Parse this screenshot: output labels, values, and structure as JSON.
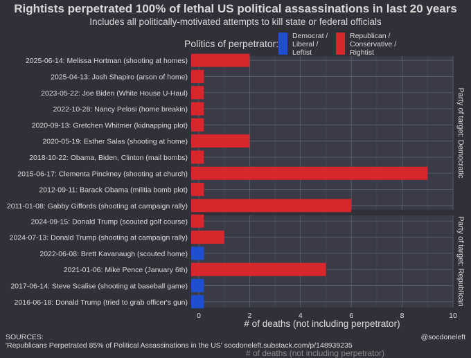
{
  "title": "Rightists perpetrated 100% of lethal US political assassinations in last 20 years",
  "subtitle": "Includes all politically-motivated attempts to kill state or federal officials",
  "legend": {
    "title": "Politics of perpetrator:",
    "items": [
      {
        "label": "Democrat /\nLiberal /\nLeftist",
        "color": "#1f4fd1"
      },
      {
        "label": "Republican /\nConservative /\nRightist",
        "color": "#d7262c"
      }
    ]
  },
  "sources": {
    "heading": "SOURCES:",
    "line": "'Republicans Perpetrated 85% of Political Assassinations in the US' socdoneleft.substack.com/p/148939235"
  },
  "handle": "@socdoneleft",
  "ghost_text": "# of deaths (not including perpetrator)",
  "chart_data": {
    "type": "bar",
    "orientation": "horizontal",
    "xlabel": "# of deaths (not including perpetrator)",
    "xlim": [
      -0.3,
      10
    ],
    "xticks": [
      0,
      2,
      4,
      6,
      8,
      10
    ],
    "grid": true,
    "legend_position": "top",
    "colors": {
      "Democrat": "#1f4fd1",
      "Republican": "#d7262c"
    },
    "panels": [
      {
        "facet_label": "Party of target: Democratic",
        "categories": [
          "2025-06-14: Melissa Hortman (shooting at homes)",
          "2025-04-13: Josh Shapiro (arson of home)",
          "2023-05-22: Joe Biden (White House U-Haul)",
          "2022-10-28: Nancy Pelosi (home breakin)",
          "2020-09-13: Gretchen Whitmer (kidnapping plot)",
          "2020-05-19: Esther Salas (shooting at home)",
          "2018-10-22: Obama, Biden, Clinton (mail bombs)",
          "2015-06-17: Clementa Pinckney (shooting at church)",
          "2012-09-11: Barack Obama (militia bomb plot)",
          "2011-01-08: Gabby Giffords (shooting at campaign rally)"
        ],
        "values": [
          2,
          0,
          0,
          0,
          0,
          2,
          0,
          9,
          0,
          6
        ],
        "perpetrator": [
          "Republican",
          "Republican",
          "Republican",
          "Republican",
          "Republican",
          "Republican",
          "Republican",
          "Republican",
          "Republican",
          "Republican"
        ]
      },
      {
        "facet_label": "Party of target: Republican",
        "categories": [
          "2024-09-15: Donald Trump (scouted golf course)",
          "2024-07-13: Donald Trump (shooting at campaign rally)",
          "2022-06-08: Brett Kavanaugh (scouted home)",
          "2021-01-06: Mike Pence (January 6th)",
          "2017-06-14: Steve Scalise (shooting at baseball game)",
          "2016-06-18: Donald Trump (tried to grab officer's gun)"
        ],
        "values": [
          0,
          1,
          0,
          5,
          0,
          0
        ],
        "perpetrator": [
          "Republican",
          "Republican",
          "Democrat",
          "Republican",
          "Democrat",
          "Democrat"
        ]
      }
    ]
  }
}
